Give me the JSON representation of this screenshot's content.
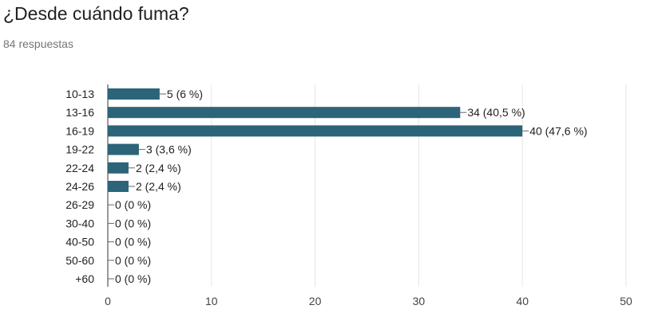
{
  "question": {
    "title": "¿Desde cuándo fuma?",
    "responses": "84 respuestas"
  },
  "colors": {
    "bar": "#2c6479",
    "grid": "#e6e6e6",
    "axis": "#333333",
    "connector": "#666666"
  },
  "chart_data": {
    "type": "bar",
    "orientation": "horizontal",
    "categories": [
      "10-13",
      "13-16",
      "16-19",
      "19-22",
      "22-24",
      "24-26",
      "26-29",
      "30-40",
      "40-50",
      "50-60",
      "+60"
    ],
    "values": [
      5,
      34,
      40,
      3,
      2,
      2,
      0,
      0,
      0,
      0,
      0
    ],
    "labels": [
      "5 (6 %)",
      "34 (40,5 %)",
      "40 (47,6 %)",
      "3 (3,6 %)",
      "2 (2,4 %)",
      "2 (2,4 %)",
      "0 (0 %)",
      "0 (0 %)",
      "0 (0 %)",
      "0 (0 %)",
      "0 (0 %)"
    ],
    "xticks": [
      0,
      10,
      20,
      30,
      40,
      50
    ],
    "xlim": [
      0,
      50
    ],
    "grid": true,
    "legend": "none"
  }
}
